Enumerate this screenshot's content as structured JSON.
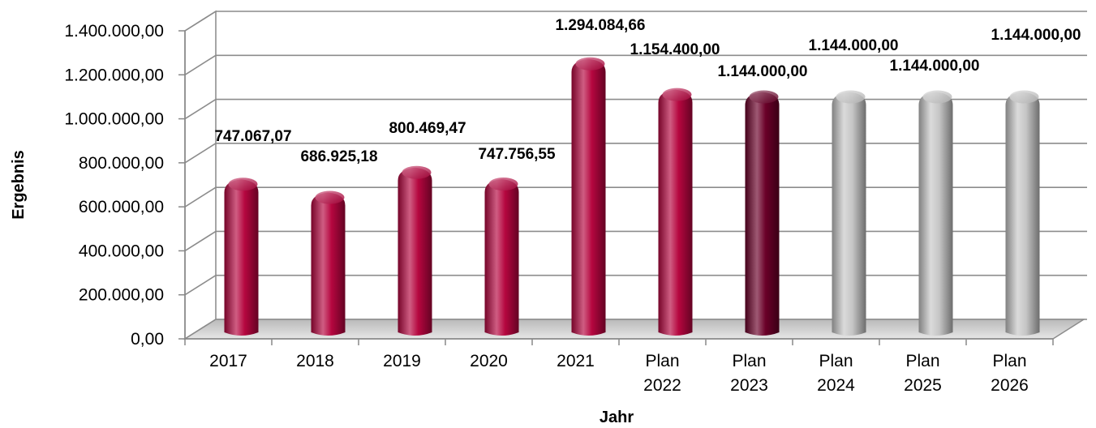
{
  "chart_data": {
    "type": "bar",
    "xlabel": "Jahr",
    "ylabel": "Ergebnis",
    "ylim": [
      0,
      1400000
    ],
    "y_ticks": [
      "0,00",
      "200.000,00",
      "400.000,00",
      "600.000,00",
      "800.000,00",
      "1.000.000,00",
      "1.200.000,00",
      "1.400.000,00"
    ],
    "grid": true,
    "categories": [
      [
        "2017"
      ],
      [
        "2018"
      ],
      [
        "2019"
      ],
      [
        "2020"
      ],
      [
        "2021"
      ],
      [
        "Plan",
        "2022"
      ],
      [
        "Plan",
        "2023"
      ],
      [
        "Plan",
        "2024"
      ],
      [
        "Plan",
        "2025"
      ],
      [
        "Plan",
        "2026"
      ]
    ],
    "values": [
      747067.07,
      686925.18,
      800469.47,
      747756.55,
      1294084.66,
      1154400.0,
      1144000.0,
      1144000.0,
      1144000.0,
      1144000.0
    ],
    "data_labels": [
      "747.067,07",
      "686.925,18",
      "800.469,47",
      "747.756,55",
      "1.294.084,66",
      "1.154.400,00",
      "1.144.000,00",
      "1.144.000,00",
      "1.144.000,00",
      "1.144.000,00"
    ],
    "bar_colors": [
      "#b5063f",
      "#b5063f",
      "#b5063f",
      "#b5063f",
      "#b5063f",
      "#b5063f",
      "#6a0028",
      "#c6c6c6",
      "#c6c6c6",
      "#c6c6c6"
    ]
  }
}
